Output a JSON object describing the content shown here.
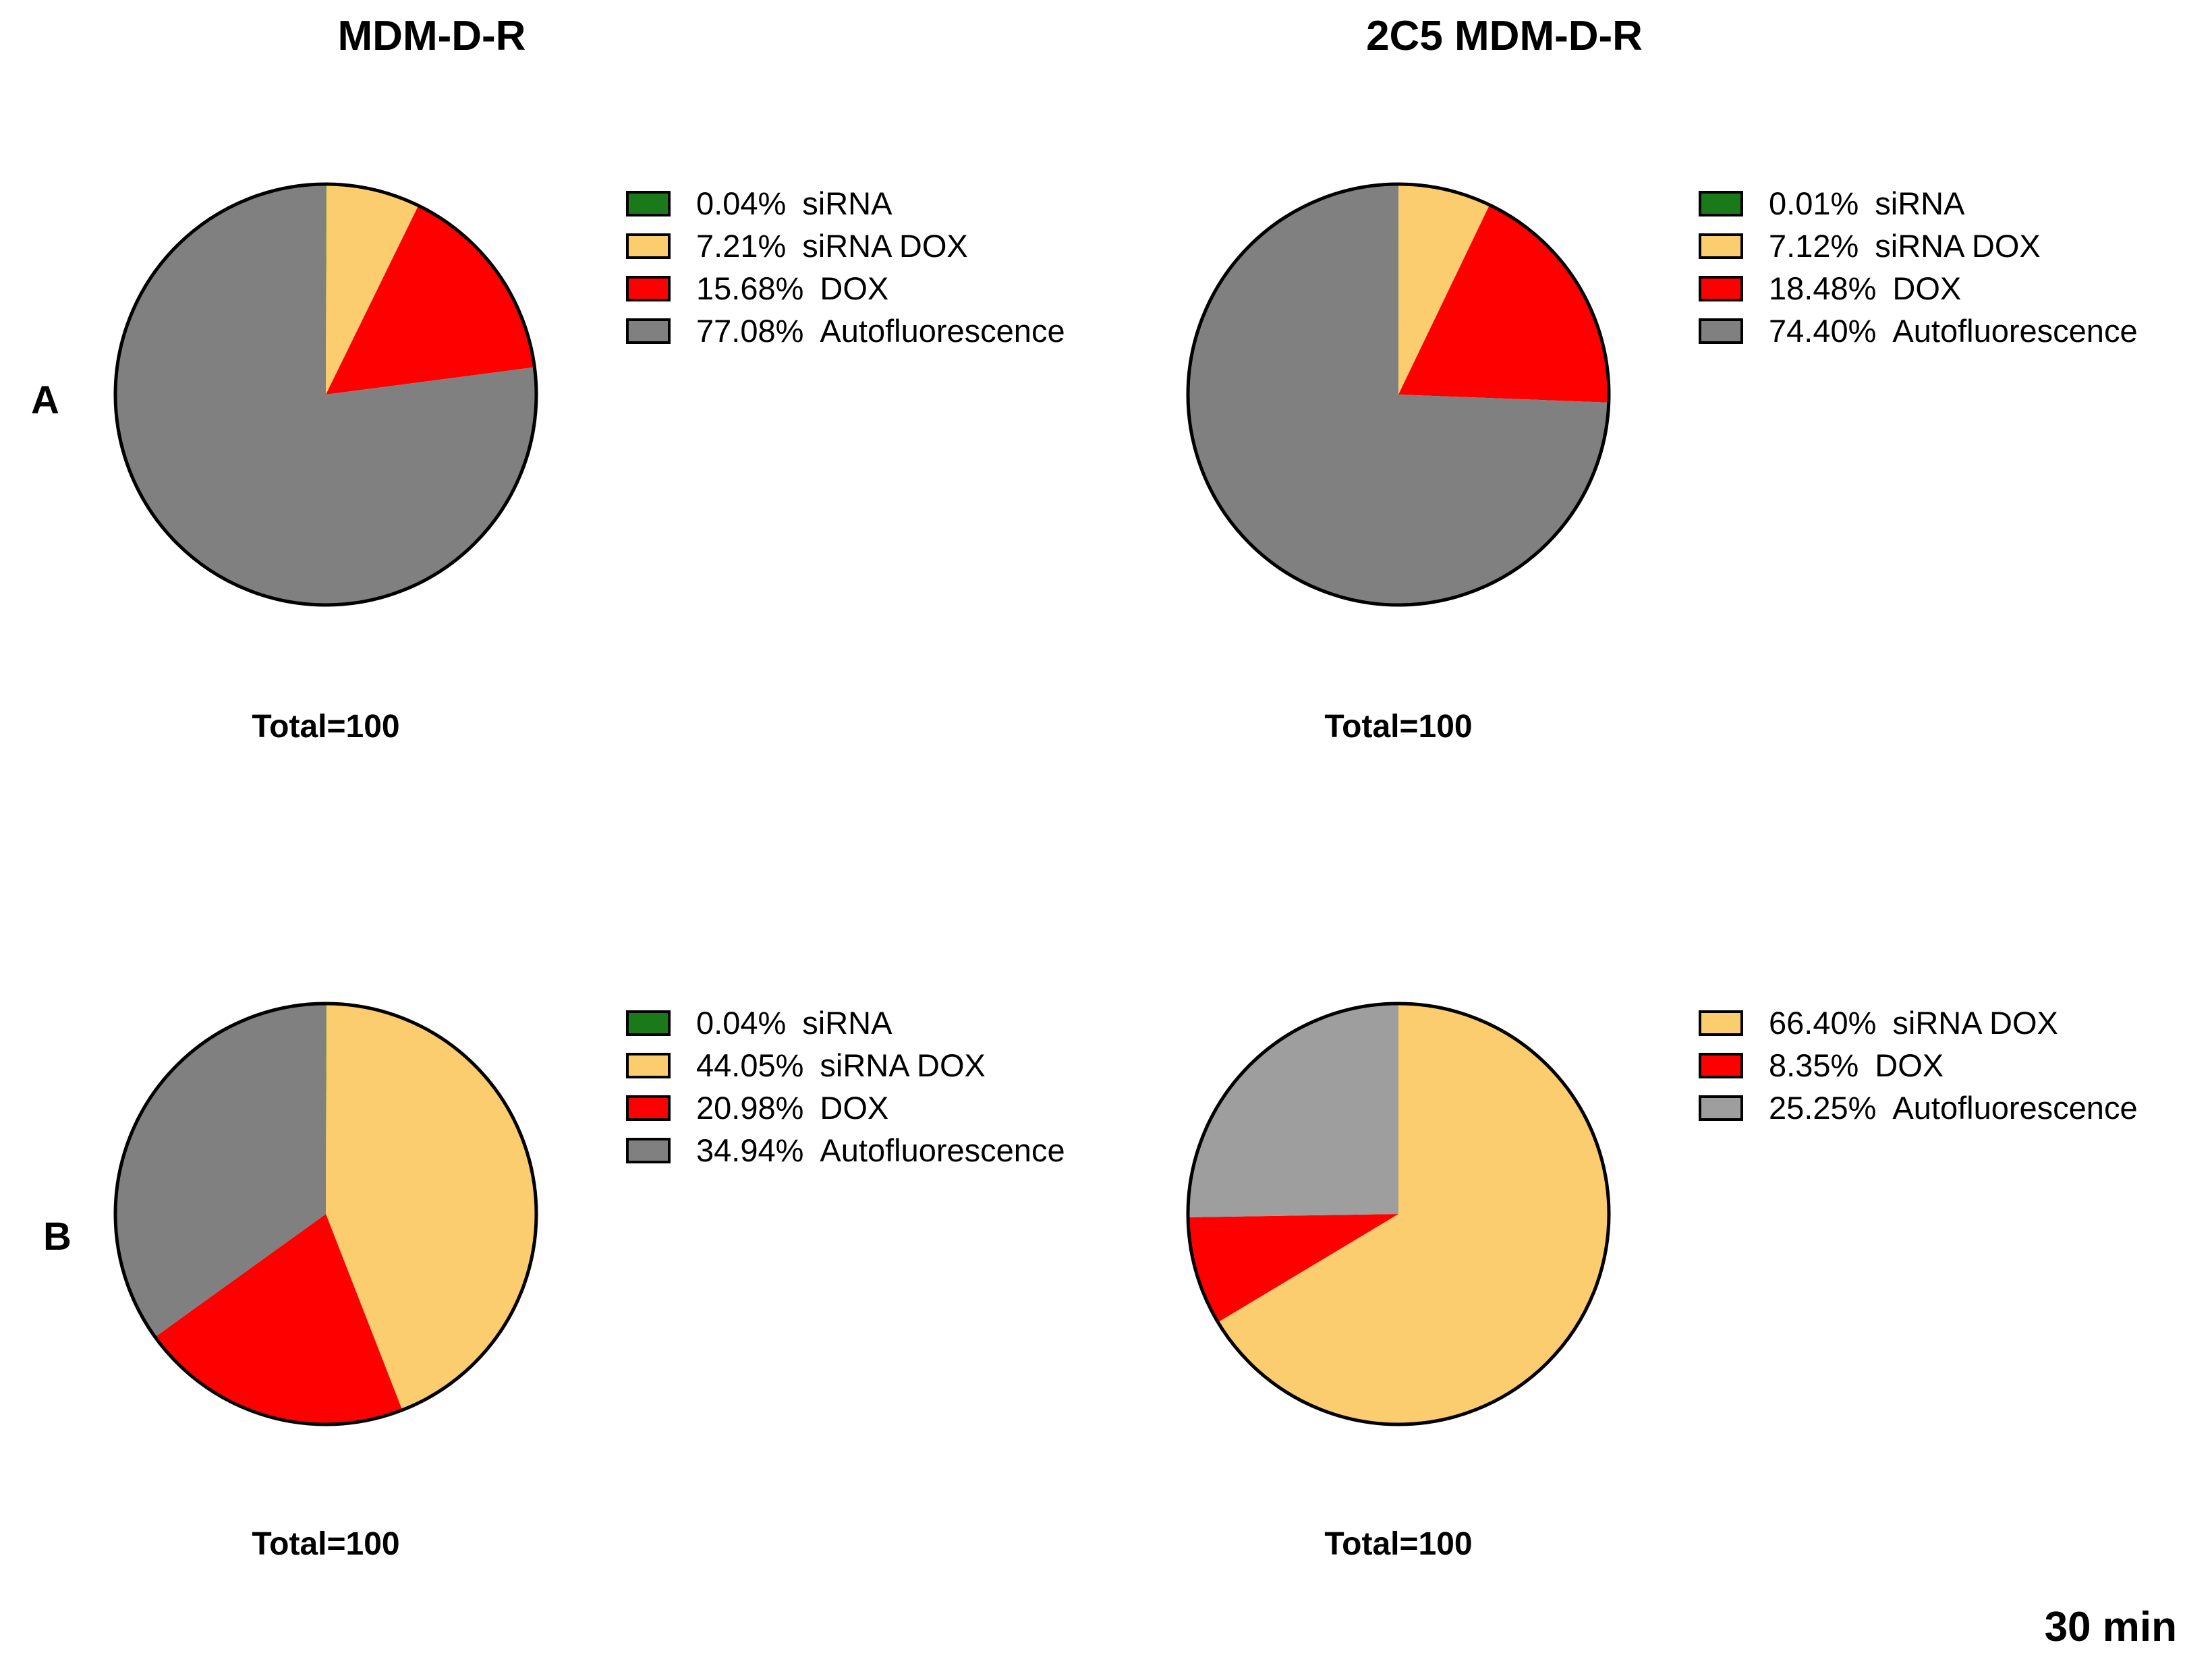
{
  "titles": {
    "left": "MDM-D-R",
    "right": "2C5 MDM-D-R"
  },
  "row_labels": {
    "A": "A",
    "B": "B"
  },
  "footer": "30 min",
  "colors": {
    "siRNA": "#1a7a1a",
    "siRNA DOX": "#fccd6e",
    "DOX": "#ff0000",
    "Autofluorescence": "#808080",
    "Autofluorescence_light": "#9e9e9e",
    "outline": "#000000"
  },
  "chart_data": [
    {
      "type": "pie",
      "id": "A-left",
      "row": "A",
      "column": "MDM-D-R",
      "total_label": "Total=100",
      "slices": [
        {
          "label": "siRNA",
          "value": 0.04,
          "pct_text": "0.04%",
          "color": "#1a7a1a"
        },
        {
          "label": "siRNA DOX",
          "value": 7.21,
          "pct_text": "7.21%",
          "color": "#fccd6e"
        },
        {
          "label": "DOX",
          "value": 15.68,
          "pct_text": "15.68%",
          "color": "#ff0000"
        },
        {
          "label": "Autofluorescence",
          "value": 77.08,
          "pct_text": "77.08%",
          "color": "#808080"
        }
      ]
    },
    {
      "type": "pie",
      "id": "A-right",
      "row": "A",
      "column": "2C5 MDM-D-R",
      "total_label": "Total=100",
      "slices": [
        {
          "label": "siRNA",
          "value": 0.01,
          "pct_text": "0.01%",
          "color": "#1a7a1a"
        },
        {
          "label": "siRNA DOX",
          "value": 7.12,
          "pct_text": "7.12%",
          "color": "#fccd6e"
        },
        {
          "label": "DOX",
          "value": 18.48,
          "pct_text": "18.48%",
          "color": "#ff0000"
        },
        {
          "label": "Autofluorescence",
          "value": 74.4,
          "pct_text": "74.40%",
          "color": "#808080"
        }
      ]
    },
    {
      "type": "pie",
      "id": "B-left",
      "row": "B",
      "column": "MDM-D-R",
      "total_label": "Total=100",
      "slices": [
        {
          "label": "siRNA",
          "value": 0.04,
          "pct_text": "0.04%",
          "color": "#1a7a1a"
        },
        {
          "label": "siRNA DOX",
          "value": 44.05,
          "pct_text": "44.05%",
          "color": "#fccd6e"
        },
        {
          "label": "DOX",
          "value": 20.98,
          "pct_text": "20.98%",
          "color": "#ff0000"
        },
        {
          "label": "Autofluorescence",
          "value": 34.94,
          "pct_text": "34.94%",
          "color": "#808080"
        }
      ]
    },
    {
      "type": "pie",
      "id": "B-right",
      "row": "B",
      "column": "2C5 MDM-D-R",
      "total_label": "Total=100",
      "slices": [
        {
          "label": "siRNA DOX",
          "value": 66.4,
          "pct_text": "66.40%",
          "color": "#fccd6e"
        },
        {
          "label": "DOX",
          "value": 8.35,
          "pct_text": "8.35%",
          "color": "#ff0000"
        },
        {
          "label": "Autofluorescence",
          "value": 25.25,
          "pct_text": "25.25%",
          "color": "#9e9e9e"
        }
      ]
    }
  ]
}
